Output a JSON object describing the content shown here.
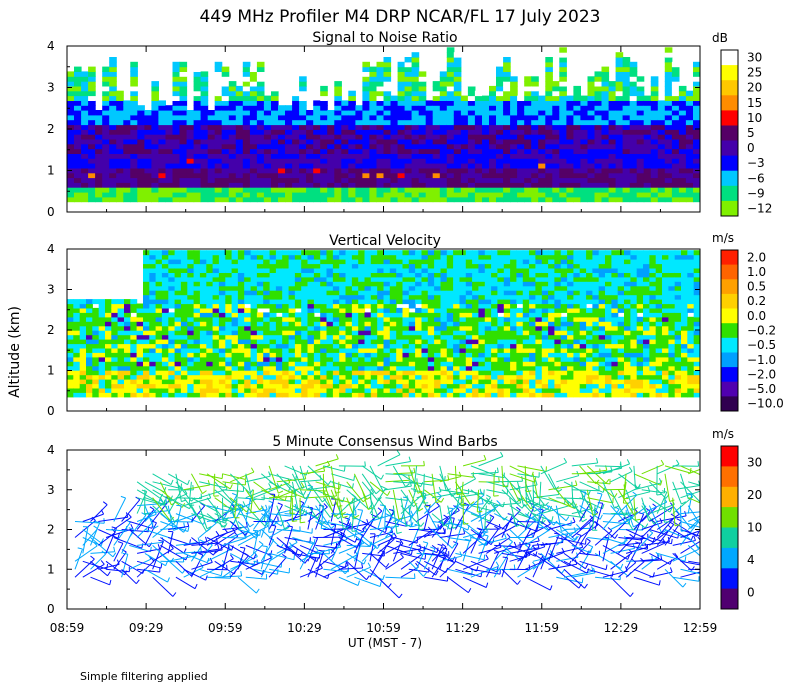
{
  "title": "449 MHz Profiler M4 DRP NCAR/FL 17 July 2023",
  "ylabel": "Altitude (km)",
  "xlabel": "UT  (MST - 7)",
  "footnote": "Simple filtering applied",
  "x_ticks": [
    "08:59",
    "09:29",
    "09:59",
    "10:29",
    "10:59",
    "11:29",
    "11:59",
    "12:29",
    "12:59"
  ],
  "chart_data": [
    {
      "type": "heatmap",
      "title": "Signal to Noise Ratio",
      "units": "dB",
      "xlim": [
        "08:59",
        "12:59"
      ],
      "ylim": [
        0,
        4
      ],
      "y_ticks": [
        0,
        1,
        2,
        3,
        4
      ],
      "colorbar": {
        "labels": [
          "30",
          "25",
          "20",
          "15",
          "10",
          "5",
          "0",
          "−3",
          "−6",
          "−9",
          "−12"
        ],
        "colors": [
          "#ffffff",
          "#ffff00",
          "#ffc800",
          "#ff8c00",
          "#ff0000",
          "#550066",
          "#4400aa",
          "#0000ff",
          "#00c8ff",
          "#00e080",
          "#80f000"
        ]
      },
      "summary": "Strong SNR (0 to 5 dB) below ~2 km, decreasing to -9 to -12 dB aloft with white gaps (no data) above 2.5 km"
    },
    {
      "type": "heatmap",
      "title": "Vertical Velocity",
      "units": "m/s",
      "xlim": [
        "08:59",
        "12:59"
      ],
      "ylim": [
        0,
        4
      ],
      "y_ticks": [
        0,
        1,
        2,
        3,
        4
      ],
      "colorbar": {
        "labels": [
          "2.0",
          "1.0",
          "0.5",
          "0.2",
          "0.0",
          "−0.2",
          "−0.5",
          "−1.0",
          "−2.0",
          "−5.0",
          "−10.0"
        ],
        "colors": [
          "#ff2000",
          "#ff6400",
          "#ffa000",
          "#ffd000",
          "#ffff00",
          "#30e000",
          "#00e8ff",
          "#00a0ff",
          "#0000ff",
          "#5000b0",
          "#300050"
        ]
      },
      "summary": "Mostly -0.5 to 0.2 m/s, with small areas of strong downdrafts near 1.5 km"
    },
    {
      "type": "wind-barbs",
      "title": "5 Minute Consensus Wind Barbs",
      "units": "m/s",
      "xlim": [
        "08:59",
        "12:59"
      ],
      "ylim": [
        0,
        4
      ],
      "y_ticks": [
        0,
        1,
        2,
        3,
        4
      ],
      "colorbar": {
        "labels": [
          "30",
          "20",
          "10",
          "4",
          "0"
        ],
        "colors": [
          "#ff0000",
          "#ff7000",
          "#ffb000",
          "#70e000",
          "#10d0a0",
          "#00a8ff",
          "#0010ff",
          "#500070"
        ]
      },
      "summary": "Light winds (0-4 m/s, blue) near 1-2 km, stronger 4-10 m/s (cyan/green) above 2.5 km"
    }
  ]
}
